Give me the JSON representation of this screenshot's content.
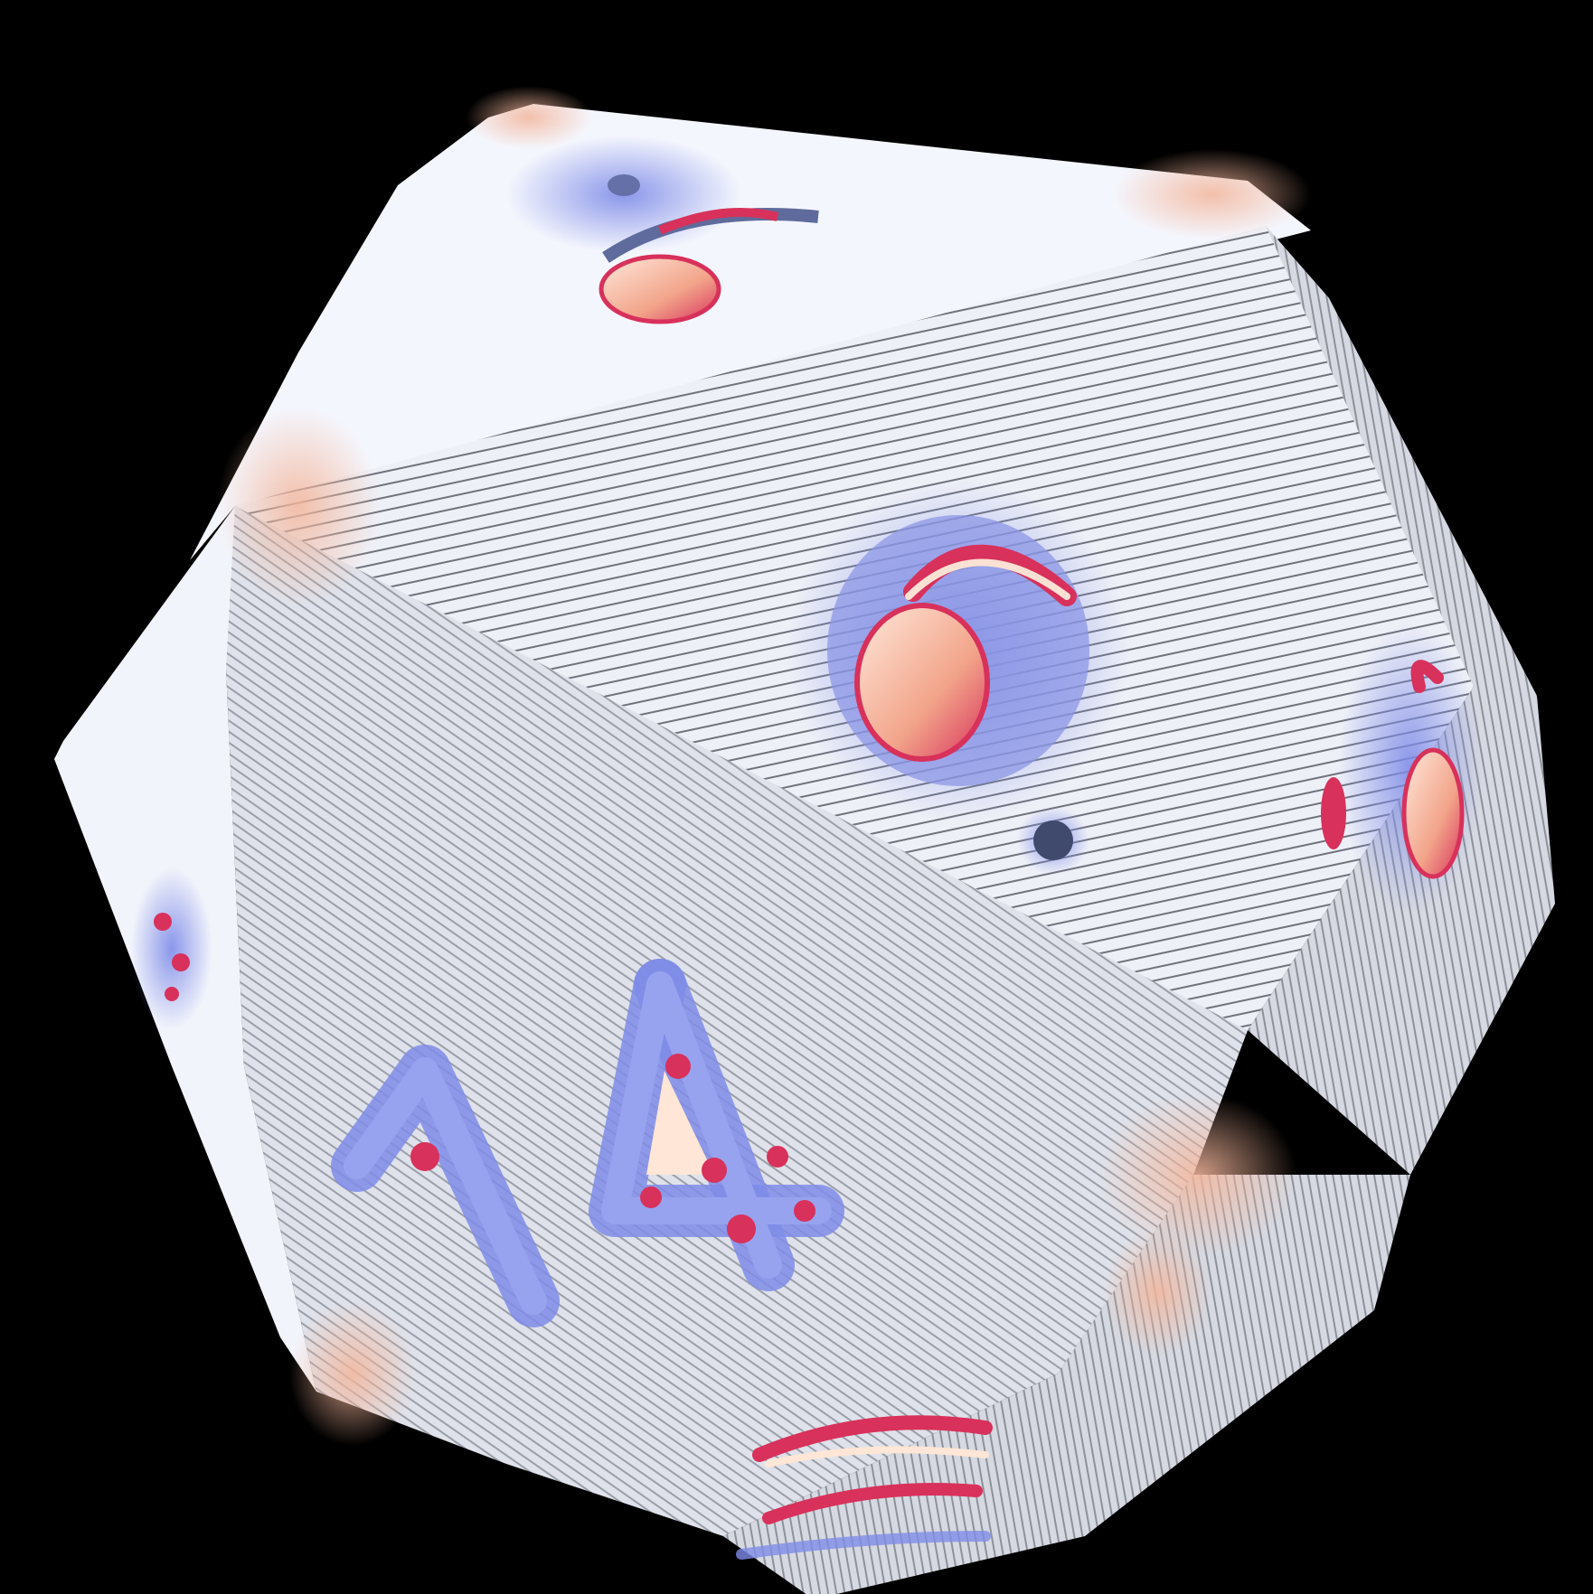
{
  "scene": {
    "background_color": "#000000",
    "object": "voxel d20 die",
    "face_numbers": {
      "top_face": "6",
      "upper_right_face": "6.",
      "front_face": "14",
      "right_face": "6",
      "bottom_face": "",
      "left_face": ""
    },
    "colors": {
      "die_body": "#f4f6fd",
      "face_shade_light": "#e9ecf4",
      "face_shade_mid": "#c8ccd6",
      "face_shade_dark": "#8e929c",
      "edge_warm": "#f5c9b5",
      "number_blue": "#7f8ce8",
      "number_red": "#d8315b",
      "number_highlight": "#ffe6d6"
    }
  }
}
